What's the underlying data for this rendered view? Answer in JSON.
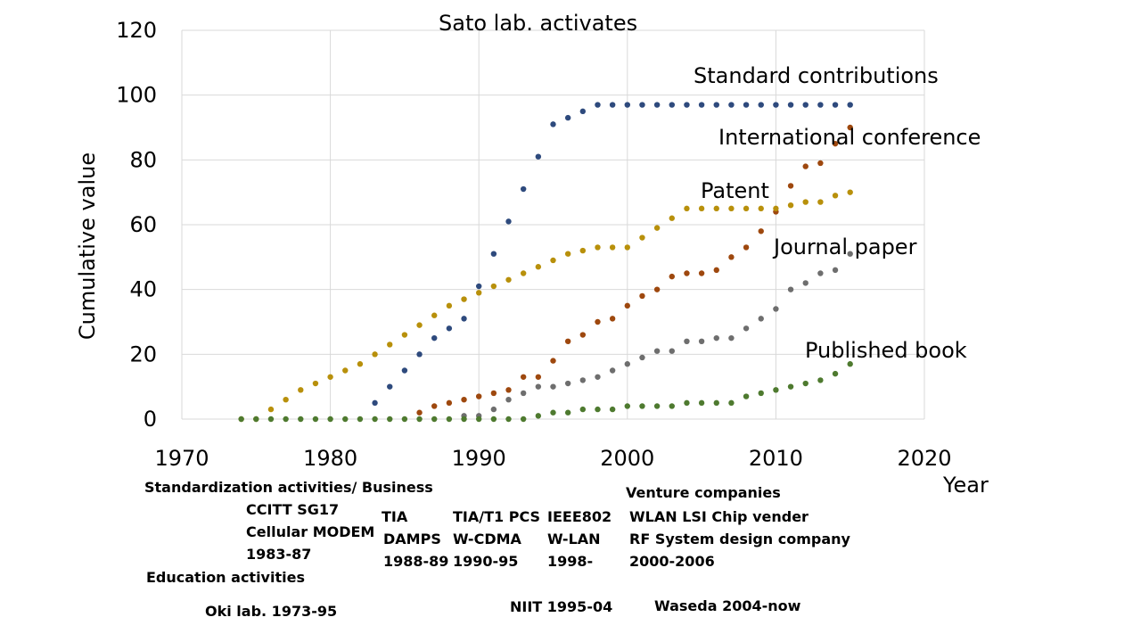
{
  "chart_data": {
    "type": "scatter",
    "title": "",
    "xlabel": "Year",
    "ylabel": "Cumulative value",
    "xlim": [
      1970,
      2020
    ],
    "ylim": [
      0,
      120
    ],
    "xticks": [
      "1970",
      "1980",
      "1990",
      "2000",
      "2010",
      "2020"
    ],
    "yticks": [
      "0",
      "20",
      "40",
      "60",
      "80",
      "100",
      "120"
    ],
    "grid": true,
    "legend": "none",
    "annotations": {
      "top": "Sato lab. activates",
      "standard": "Standard contributions",
      "conference": "International conference",
      "patent": "Patent",
      "journal": "Journal paper",
      "book": "Published book"
    },
    "series": [
      {
        "name": "Standard contributions",
        "color": "#2E4A7D",
        "x": [
          1983,
          1984,
          1985,
          1986,
          1987,
          1988,
          1989,
          1990,
          1991,
          1992,
          1993,
          1994,
          1995,
          1996,
          1997,
          1998,
          1999,
          2000,
          2001,
          2002,
          2003,
          2004,
          2005,
          2006,
          2007,
          2008,
          2009,
          2010,
          2011,
          2012,
          2013,
          2014,
          2015
        ],
        "values": [
          5,
          10,
          15,
          20,
          25,
          28,
          31,
          41,
          51,
          61,
          71,
          81,
          91,
          93,
          95,
          97,
          97,
          97,
          97,
          97,
          97,
          97,
          97,
          97,
          97,
          97,
          97,
          97,
          97,
          97,
          97,
          97,
          97
        ]
      },
      {
        "name": "International conference",
        "color": "#9E480E",
        "x": [
          1986,
          1987,
          1988,
          1989,
          1990,
          1991,
          1992,
          1993,
          1994,
          1995,
          1996,
          1997,
          1998,
          1999,
          2000,
          2001,
          2002,
          2003,
          2004,
          2005,
          2006,
          2007,
          2008,
          2009,
          2010,
          2011,
          2012,
          2013,
          2014,
          2015
        ],
        "values": [
          2,
          4,
          5,
          6,
          7,
          8,
          9,
          13,
          13,
          18,
          24,
          26,
          30,
          31,
          35,
          38,
          40,
          44,
          45,
          45,
          46,
          50,
          53,
          58,
          64,
          72,
          78,
          79,
          85,
          90
        ]
      },
      {
        "name": "Patent",
        "color": "#B8900B",
        "x": [
          1974,
          1975,
          1976,
          1977,
          1978,
          1979,
          1980,
          1981,
          1982,
          1983,
          1984,
          1985,
          1986,
          1987,
          1988,
          1989,
          1990,
          1991,
          1992,
          1993,
          1994,
          1995,
          1996,
          1997,
          1998,
          1999,
          2000,
          2001,
          2002,
          2003,
          2004,
          2005,
          2006,
          2007,
          2008,
          2009,
          2010,
          2011,
          2012,
          2013,
          2014,
          2015
        ],
        "values": [
          0,
          0,
          3,
          6,
          9,
          11,
          13,
          15,
          17,
          20,
          23,
          26,
          29,
          32,
          35,
          37,
          39,
          41,
          43,
          45,
          47,
          49,
          51,
          52,
          53,
          53,
          53,
          56,
          59,
          62,
          65,
          65,
          65,
          65,
          65,
          65,
          65,
          66,
          67,
          67,
          69,
          70
        ]
      },
      {
        "name": "Journal paper",
        "color": "#6E6E6E",
        "x": [
          1989,
          1990,
          1991,
          1992,
          1993,
          1994,
          1995,
          1996,
          1997,
          1998,
          1999,
          2000,
          2001,
          2002,
          2003,
          2004,
          2005,
          2006,
          2007,
          2008,
          2009,
          2010,
          2011,
          2012,
          2013,
          2014,
          2015
        ],
        "values": [
          1,
          1,
          3,
          6,
          8,
          10,
          10,
          11,
          12,
          13,
          15,
          17,
          19,
          21,
          21,
          24,
          24,
          25,
          25,
          28,
          31,
          34,
          40,
          42,
          45,
          46,
          51
        ]
      },
      {
        "name": "Published book",
        "color": "#4E7A2F",
        "x": [
          1974,
          1975,
          1976,
          1977,
          1978,
          1979,
          1980,
          1981,
          1982,
          1983,
          1984,
          1985,
          1986,
          1987,
          1988,
          1989,
          1990,
          1991,
          1992,
          1993,
          1994,
          1995,
          1996,
          1997,
          1998,
          1999,
          2000,
          2001,
          2002,
          2003,
          2004,
          2005,
          2006,
          2007,
          2008,
          2009,
          2010,
          2011,
          2012,
          2013,
          2014,
          2015
        ],
        "values": [
          0,
          0,
          0,
          0,
          0,
          0,
          0,
          0,
          0,
          0,
          0,
          0,
          0,
          0,
          0,
          0,
          0,
          0,
          0,
          0,
          1,
          2,
          2,
          3,
          3,
          3,
          4,
          4,
          4,
          4,
          5,
          5,
          5,
          5,
          7,
          8,
          9,
          10,
          11,
          12,
          14,
          17
        ]
      }
    ]
  },
  "notes": {
    "std_biz": "Standardization  activities/ Business",
    "ccitt": "CCITT SG17",
    "modem": "Cellular MODEM",
    "modem_years": "1983-87",
    "education": "Education  activities",
    "oki": "Oki lab. 1973-95",
    "tia": "TIA",
    "damps": "DAMPS",
    "damps_years": "1988-89",
    "tia_pcs": "TIA/T1 PCS",
    "wcdma": "W-CDMA",
    "wcdma_years": "1990-95",
    "ieee": "IEEE802",
    "wlan": "W-LAN",
    "wlan_years": "1998-",
    "niit": "NIIT 1995-04",
    "venture": "Venture companies",
    "wlan_lsi": "WLAN LSI Chip vender",
    "rf_design": "RF System design company",
    "venture_years": "2000-2006",
    "waseda": "Waseda 2004-now"
  }
}
